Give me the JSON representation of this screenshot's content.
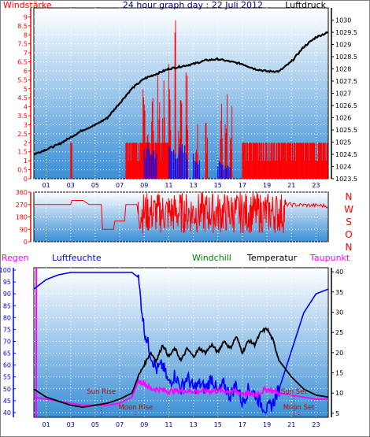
{
  "header": {
    "left": "Windstärke",
    "center": "24 hour graph day : 22 Juli 2012",
    "right": "Luftdruck"
  },
  "middle_header": {
    "compass": [
      "N",
      "W",
      "S",
      "O",
      "N"
    ]
  },
  "bottom_header": {
    "regen": "Regen",
    "luftfeuchte": "Luftfeuchte",
    "windchill": "Windchill",
    "temperatur": "Temperatur",
    "taupunkt": "Taupunkt"
  },
  "colors": {
    "wind": "#ff0000",
    "gust": "#0000ff",
    "pressure": "#000000",
    "direction": "#ff0000",
    "humidity": "#0000ff",
    "temperature": "#000000",
    "windchill": "#008000",
    "dewpoint": "#ff00ff",
    "rain": "#ff0000",
    "panel_top": "#ffffff",
    "panel_bottom": "#3a8fd6"
  },
  "chart_data": [
    {
      "type": "bar",
      "name": "wind",
      "ylabel": "Windstärke",
      "y2label": "Luftdruck",
      "ylim": [
        0,
        9.5
      ],
      "y2lim": [
        1023.5,
        1030.5
      ],
      "yticks": [
        "0",
        "0.5",
        "1",
        "1.5",
        "2",
        "2.5",
        "3",
        "3.5",
        "4",
        "4.5",
        "5",
        "5.5",
        "6",
        "6.5",
        "7",
        "7.5",
        "8",
        "8.5",
        "9"
      ],
      "y2ticks": [
        "1023.5",
        "1024",
        "1024.5",
        "1025",
        "1025.5",
        "1026",
        "1026.5",
        "1027",
        "1027.5",
        "1028",
        "1028.5",
        "1029",
        "1029.5",
        "1030"
      ],
      "xticks": [
        "01",
        "03",
        "05",
        "07",
        "09",
        "11",
        "13",
        "15",
        "17",
        "19",
        "21",
        "23"
      ],
      "xlim": [
        0,
        24
      ],
      "wind_bursts": [
        {
          "t": [
            3.0,
            3.1
          ],
          "v": 2.0
        },
        {
          "t": [
            7.5,
            11.2
          ],
          "v": 2.0
        },
        {
          "t": [
            8.9,
            9.1
          ],
          "v": 5.5
        },
        {
          "t": [
            9.2,
            9.4
          ],
          "v": 4.5
        },
        {
          "t": [
            9.6,
            9.8
          ],
          "v": 5.5
        },
        {
          "t": [
            10.1,
            10.3
          ],
          "v": 6.0
        },
        {
          "t": [
            10.5,
            10.7
          ],
          "v": 5.5
        },
        {
          "t": [
            11.0,
            11.2
          ],
          "v": 7.0
        },
        {
          "t": [
            11.5,
            11.6
          ],
          "v": 9.5
        },
        {
          "t": [
            11.8,
            12.1
          ],
          "v": 5.5
        },
        {
          "t": [
            12.4,
            12.6
          ],
          "v": 6.5
        },
        {
          "t": [
            13.2,
            13.4
          ],
          "v": 4.5
        },
        {
          "t": [
            14.0,
            14.2
          ],
          "v": 3.5
        },
        {
          "t": [
            15.2,
            15.4
          ],
          "v": 6.5
        },
        {
          "t": [
            15.6,
            15.8
          ],
          "v": 5.5
        },
        {
          "t": [
            16.0,
            16.2
          ],
          "v": 5.5
        },
        {
          "t": [
            17.0,
            24.0
          ],
          "v": 2.0
        }
      ],
      "gust_bursts": [
        {
          "t": [
            9.0,
            10.0
          ],
          "v": 2.0
        },
        {
          "t": [
            11.0,
            12.5
          ],
          "v": 2.0
        },
        {
          "t": [
            13.0,
            13.5
          ],
          "v": 1.5
        },
        {
          "t": [
            15.0,
            16.0
          ],
          "v": 1.0
        }
      ],
      "pressure": {
        "x": [
          0,
          1,
          2,
          3,
          4,
          5,
          6,
          7,
          8,
          9,
          10,
          11,
          12,
          13,
          14,
          15,
          16,
          17,
          18,
          19,
          20,
          21,
          22,
          23,
          24
        ],
        "values": [
          1024.5,
          1024.7,
          1024.9,
          1025.2,
          1025.5,
          1025.7,
          1026.0,
          1026.6,
          1027.2,
          1027.6,
          1027.8,
          1028.0,
          1028.1,
          1028.2,
          1028.35,
          1028.4,
          1028.3,
          1028.2,
          1028.0,
          1027.9,
          1027.9,
          1028.3,
          1028.9,
          1029.3,
          1029.5
        ]
      }
    },
    {
      "type": "line",
      "name": "wind_direction",
      "ylim": [
        0,
        360
      ],
      "yticks": [
        "0",
        "90",
        "180",
        "270",
        "360"
      ],
      "x": [
        0,
        3,
        3.1,
        4,
        4.5,
        5.5,
        5.6,
        6.5,
        6.6,
        7.4,
        7.5,
        8.4,
        8.5,
        24
      ],
      "values": [
        270,
        270,
        300,
        300,
        270,
        270,
        90,
        90,
        150,
        150,
        270,
        270,
        200,
        250
      ],
      "noisy_from": 8.5,
      "noisy_to": 20.5,
      "tail": {
        "x": [
          20.5,
          24
        ],
        "values": [
          270,
          260
        ]
      }
    },
    {
      "type": "line",
      "name": "humidity_temperature",
      "ylabel": "Luftfeuchte",
      "y2label": "Temperatur",
      "ylim": [
        38,
        101
      ],
      "y2lim": [
        4,
        41
      ],
      "yticks": [
        "40",
        "45",
        "50",
        "55",
        "60",
        "65",
        "70",
        "75",
        "80",
        "85",
        "90",
        "95",
        "100"
      ],
      "y2ticks": [
        "5",
        "10",
        "15",
        "20",
        "25",
        "30",
        "35",
        "40"
      ],
      "humidity": {
        "x": [
          0,
          0.5,
          1,
          1.5,
          2,
          3,
          4,
          5,
          6,
          7,
          8,
          8.5,
          9,
          9.5,
          10,
          10.5,
          11,
          11.5,
          12,
          12.5,
          13,
          13.5,
          14,
          14.5,
          15,
          15.5,
          16,
          16.5,
          17,
          17.5,
          18,
          18.5,
          19,
          19.5,
          20,
          20.5,
          21,
          21.5,
          22,
          22.5,
          23,
          24
        ],
        "values": [
          92,
          94,
          96,
          97,
          98,
          99,
          99,
          99,
          99,
          99,
          99,
          97,
          75,
          65,
          58,
          60,
          52,
          56,
          50,
          55,
          50,
          52,
          50,
          55,
          48,
          52,
          47,
          52,
          44,
          50,
          48,
          44,
          41,
          44,
          50,
          58,
          66,
          74,
          82,
          86,
          90,
          92
        ]
      },
      "temperature": {
        "x": [
          0,
          1,
          2,
          3,
          4,
          5,
          6,
          7,
          8,
          8.5,
          9,
          9.5,
          10,
          10.5,
          11,
          11.5,
          12,
          12.5,
          13,
          13.5,
          14,
          14.5,
          15,
          15.5,
          16,
          16.5,
          17,
          17.5,
          18,
          18.5,
          19,
          19.5,
          20,
          21,
          22,
          23,
          24
        ],
        "values": [
          11,
          9,
          8,
          7,
          6.5,
          7,
          7.5,
          8.5,
          10,
          14,
          17,
          20,
          18,
          22,
          19,
          21,
          18,
          21,
          19,
          21,
          20,
          22,
          20,
          23,
          21,
          24,
          20,
          23,
          22,
          25,
          26,
          23,
          18,
          14,
          11,
          9.5,
          9
        ]
      },
      "dewpoint": {
        "x": [
          0,
          1,
          2,
          3,
          4,
          5,
          6,
          7,
          8,
          8.5,
          9,
          9.5,
          10,
          11,
          12,
          13,
          14,
          15,
          16,
          17,
          18,
          19,
          20,
          21,
          22,
          23,
          24
        ],
        "values": [
          9,
          8.5,
          8,
          7.5,
          7,
          7,
          7,
          7.5,
          9,
          13,
          12.5,
          11,
          11,
          10.5,
          10.5,
          10.5,
          10.5,
          10.5,
          10.5,
          10,
          9.5,
          11,
          10,
          9.5,
          9,
          8.5,
          8.5
        ]
      },
      "rain_marker_x": 0.2,
      "annotations": [
        {
          "label": "Sun Rise",
          "x": 5.5
        },
        {
          "label": "Moon Rise",
          "x": 8.3
        },
        {
          "label": "Sun Set",
          "x": 21.2
        },
        {
          "label": "Moon Set",
          "x": 21.6
        }
      ]
    }
  ]
}
